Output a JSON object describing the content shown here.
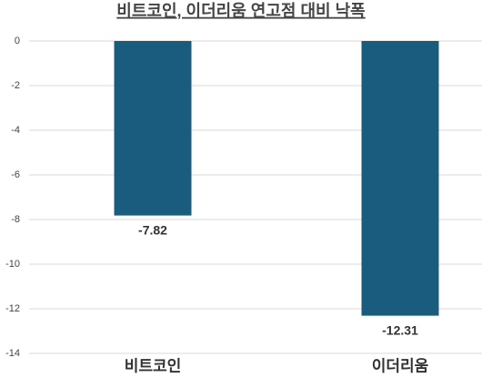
{
  "chart_data": {
    "type": "bar",
    "title": "비트코인, 이더리움 연고점 대비 낙폭",
    "categories": [
      "비트코인",
      "이더리움"
    ],
    "values": [
      -7.82,
      -12.31
    ],
    "color": "#195c7d",
    "ylim": [
      -14,
      0
    ],
    "yticks": [
      0,
      -2,
      -4,
      -6,
      -8,
      -10,
      -12,
      -14
    ],
    "grid": true
  }
}
